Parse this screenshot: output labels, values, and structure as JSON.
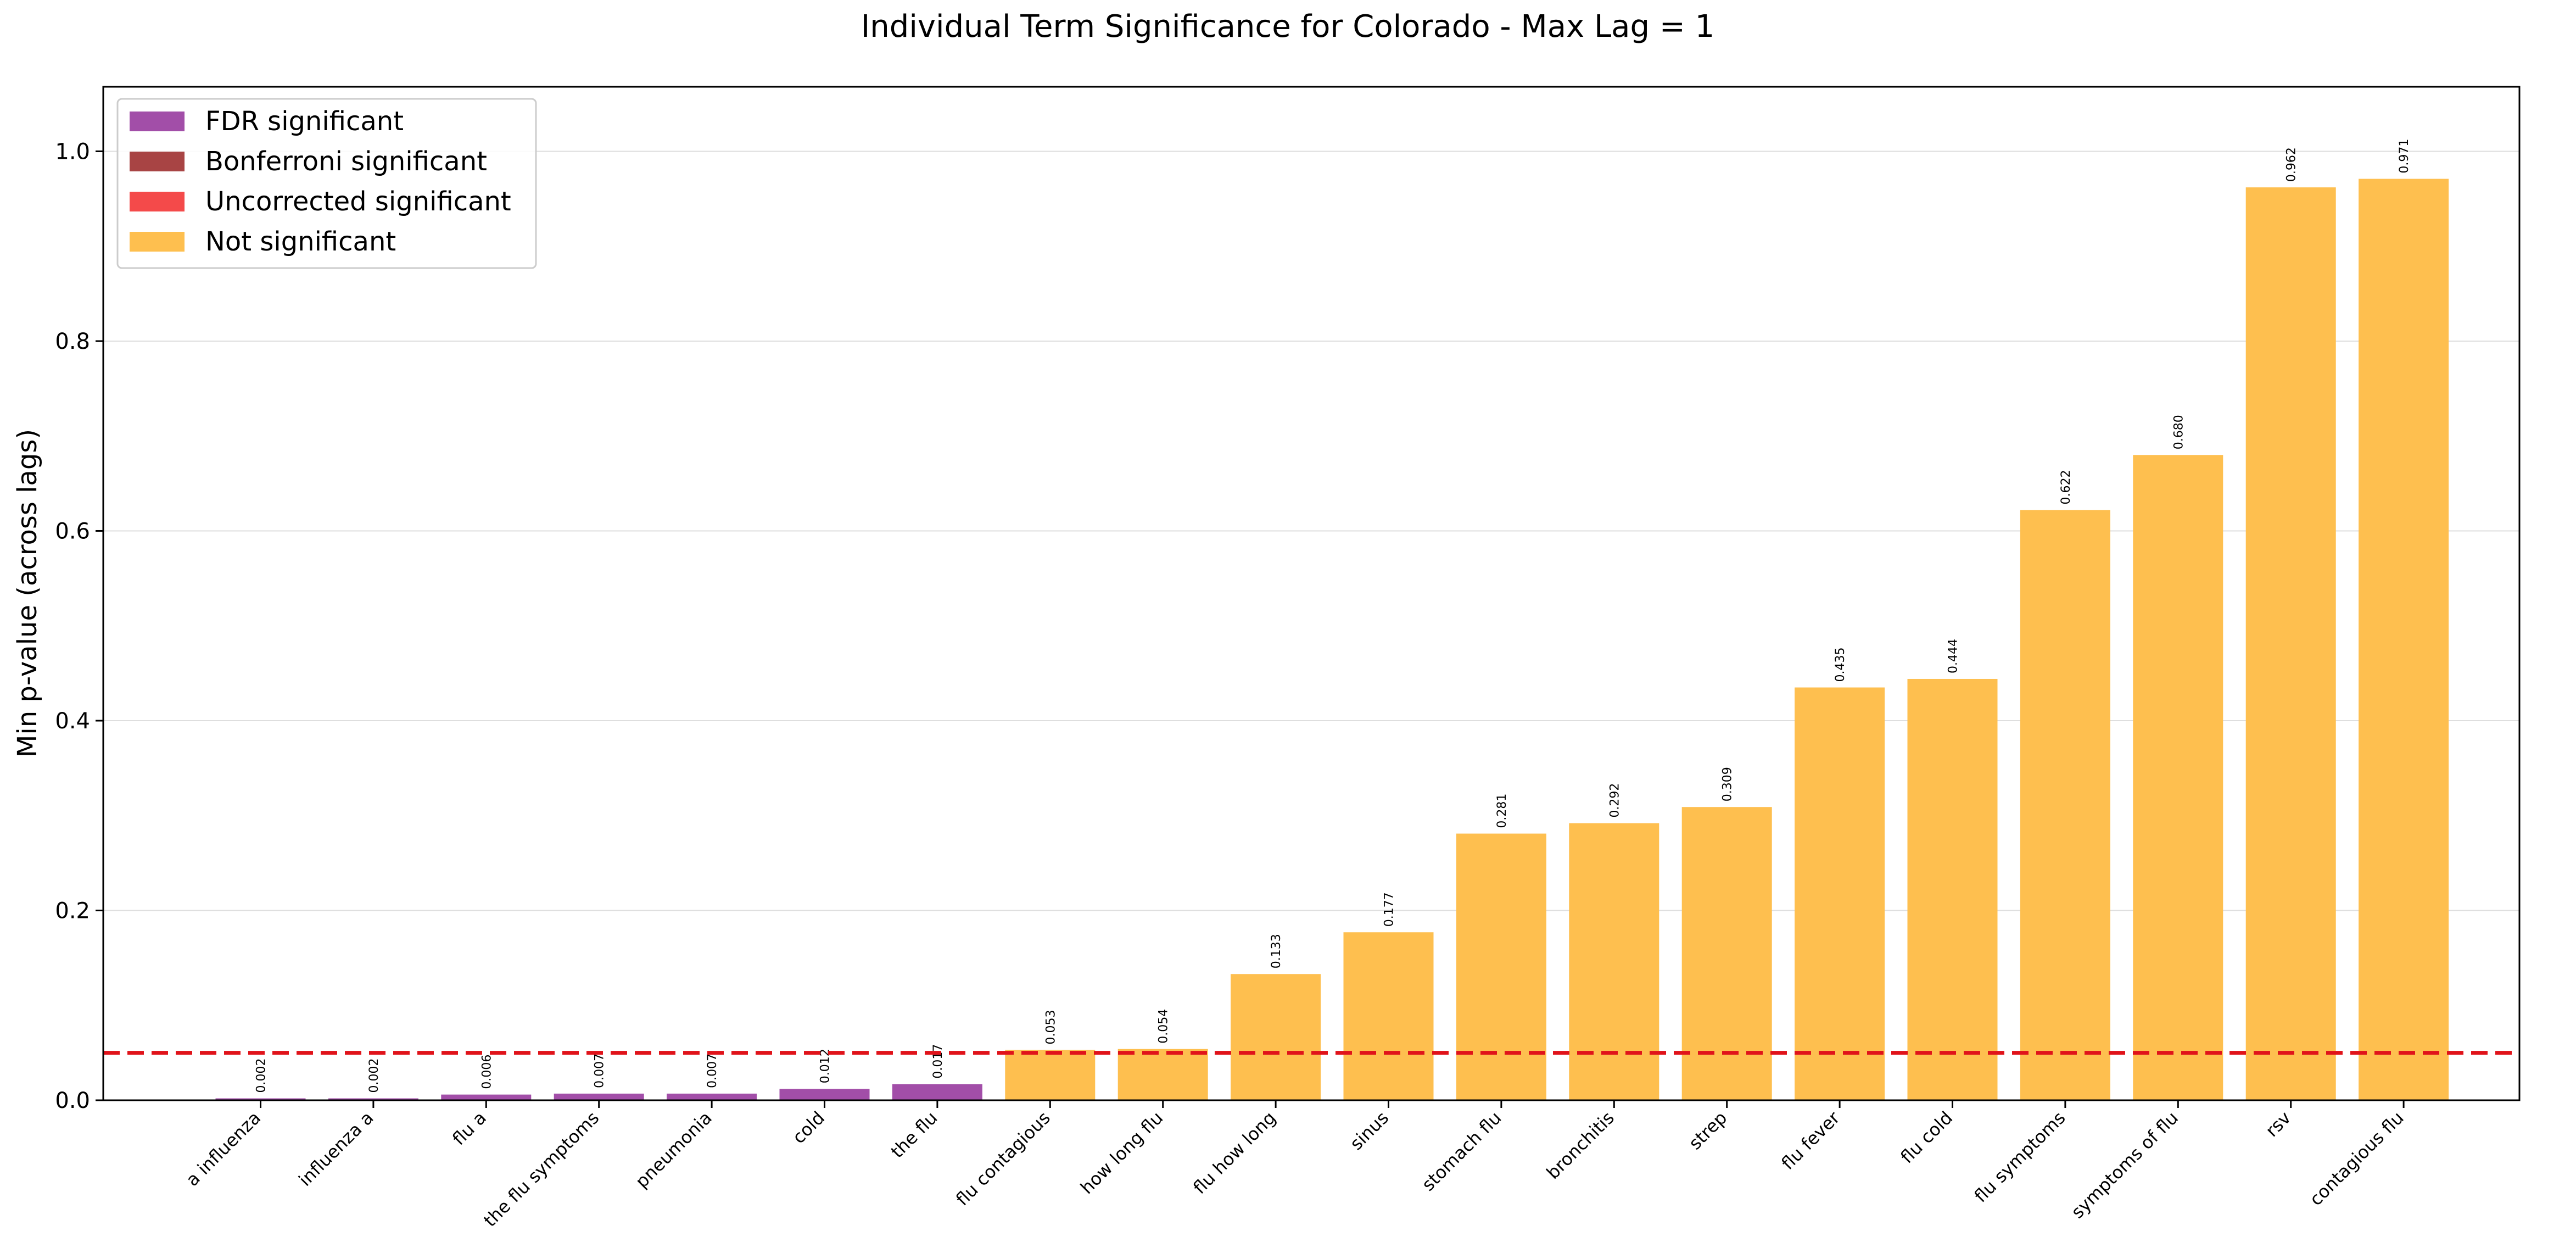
{
  "chart_data": {
    "type": "bar",
    "title": "Individual Term Significance for Colorado - Max Lag = 1",
    "xlabel": "",
    "ylabel": "Min p-value (across lags)",
    "ylim": [
      0,
      1.068
    ],
    "yticks": [
      "0.0",
      "0.2",
      "0.4",
      "0.6",
      "0.8",
      "1.0"
    ],
    "grid": "y",
    "legend_position": "upper-left",
    "threshold": {
      "value": 0.05,
      "color": "#e0131a",
      "style": "dashed"
    },
    "categories": [
      "a influenza",
      "influenza a",
      "flu a",
      "the flu symptoms",
      "pneumonia",
      "cold",
      "the flu",
      "flu contagious",
      "how long flu",
      "flu how long",
      "sinus",
      "stomach flu",
      "bronchitis",
      "strep",
      "flu fever",
      "flu cold",
      "flu symptoms",
      "symptoms of flu",
      "rsv",
      "contagious flu"
    ],
    "values": [
      0.002,
      0.002,
      0.006,
      0.007,
      0.007,
      0.012,
      0.017,
      0.053,
      0.054,
      0.133,
      0.177,
      0.281,
      0.292,
      0.309,
      0.435,
      0.444,
      0.622,
      0.68,
      0.962,
      0.971
    ],
    "value_labels": [
      "0.002",
      "0.002",
      "0.006",
      "0.007",
      "0.007",
      "0.012",
      "0.017",
      "0.053",
      "0.054",
      "0.133",
      "0.177",
      "0.281",
      "0.292",
      "0.309",
      "0.435",
      "0.444",
      "0.622",
      "0.680",
      "0.962",
      "0.971"
    ],
    "significance": [
      "fdr",
      "fdr",
      "fdr",
      "fdr",
      "fdr",
      "fdr",
      "fdr",
      "ns",
      "ns",
      "ns",
      "ns",
      "ns",
      "ns",
      "ns",
      "ns",
      "ns",
      "ns",
      "ns",
      "ns",
      "ns"
    ],
    "legend": [
      {
        "key": "fdr",
        "label": "FDR significant",
        "color": "#a24ea8"
      },
      {
        "key": "bonferroni",
        "label": "Bonferroni significant",
        "color": "#a84444"
      },
      {
        "key": "uncorrected",
        "label": "Uncorrected significant",
        "color": "#f44a4a"
      },
      {
        "key": "ns",
        "label": "Not significant",
        "color": "#febf4f"
      }
    ]
  }
}
